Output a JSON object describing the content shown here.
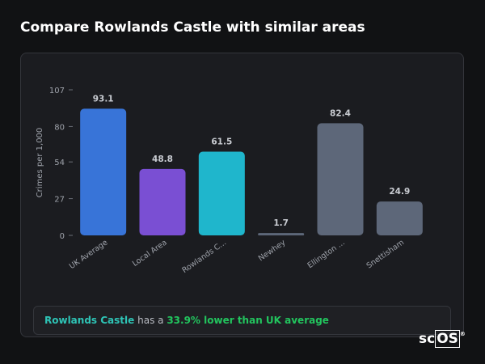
{
  "chart_data": {
    "type": "bar",
    "title": "Compare Rowlands Castle with similar areas",
    "y_label": "Crimes per 1,000",
    "categories": [
      "UK Average",
      "Local Area",
      "Rowlands C...",
      "Newhey",
      "Ellington ...",
      "Snettisham"
    ],
    "values": [
      93.1,
      48.8,
      61.5,
      1.7,
      82.4,
      24.9
    ],
    "colors": [
      "#3874d8",
      "#7a4fd3",
      "#1fb6cc",
      "#5d6779",
      "#5d6779",
      "#5d6779"
    ],
    "ylim": [
      0,
      107
    ],
    "yticks": [
      0,
      27,
      54,
      80,
      107
    ],
    "grid": false,
    "summary": {
      "area": "Rowlands Castle",
      "connector": "has a",
      "comparison": "33.9% lower than UK average"
    }
  },
  "logo": {
    "prefix": "sc",
    "boxed": "OS",
    "mark": "®"
  }
}
